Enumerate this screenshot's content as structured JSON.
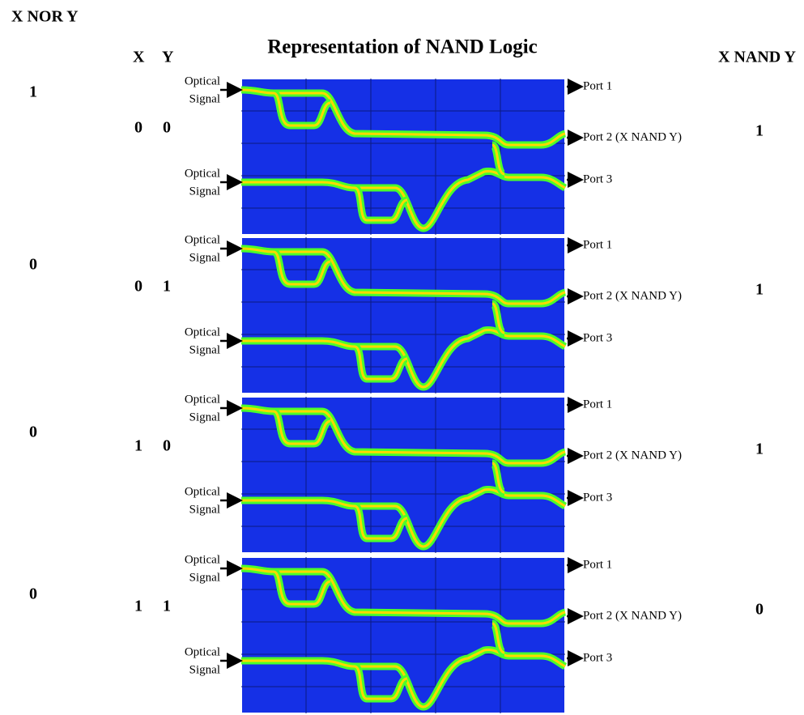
{
  "header": {
    "left": "X NOR Y",
    "x": "X",
    "y": "Y",
    "title": "Representation of NAND Logic",
    "right": "X NAND Y"
  },
  "rows": [
    {
      "xnor": "1",
      "x": "0",
      "y": "0",
      "nand": "1",
      "inputs": [
        [
          "Optical",
          "Signal"
        ],
        [
          "Optical",
          "Signal"
        ]
      ],
      "ports": [
        "Port 1",
        "Port 2 (X NAND Y)",
        "Port 3"
      ]
    },
    {
      "xnor": "0",
      "x": "0",
      "y": "1",
      "nand": "1",
      "inputs": [
        [
          "Optical",
          "Signal"
        ],
        [
          "Optical",
          "Signal"
        ]
      ],
      "ports": [
        "Port 1",
        "Port 2 (X NAND Y)",
        "Port 3"
      ]
    },
    {
      "xnor": "0",
      "x": "1",
      "y": "0",
      "nand": "1",
      "inputs": [
        [
          "Optical",
          "Signal"
        ],
        [
          "Optical",
          "Signal"
        ]
      ],
      "ports": [
        "Port 1",
        "Port 2 (X NAND Y)",
        "Port 3"
      ]
    },
    {
      "xnor": "0",
      "x": "1",
      "y": "1",
      "nand": "0",
      "inputs": [
        [
          "Optical",
          "Signal"
        ],
        [
          "Optical",
          "Signal"
        ]
      ],
      "ports": [
        "Port 1",
        "Port 2 (X NAND Y)",
        "Port 3"
      ]
    }
  ]
}
